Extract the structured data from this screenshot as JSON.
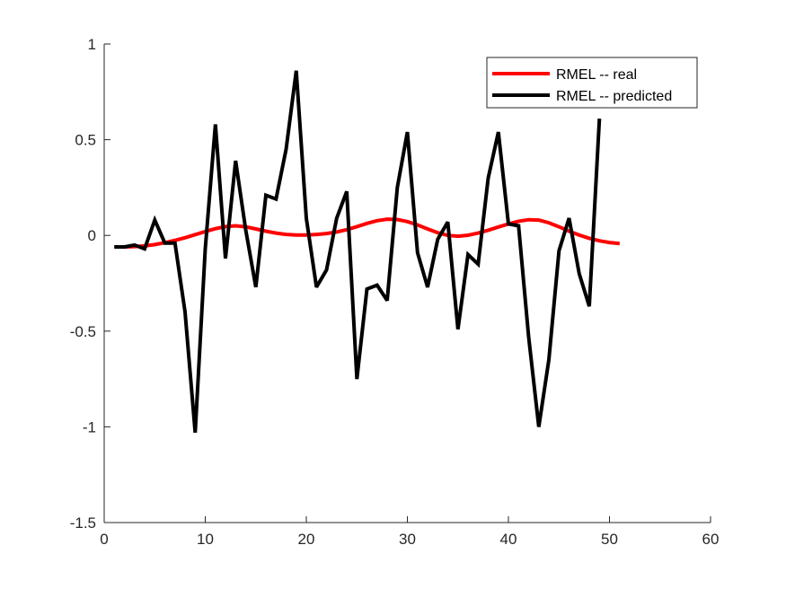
{
  "chart_data": {
    "type": "line",
    "title": "",
    "xlabel": "",
    "ylabel": "",
    "xlim": [
      0,
      60
    ],
    "ylim": [
      -1.5,
      1
    ],
    "xticks": [
      0,
      10,
      20,
      30,
      40,
      50,
      60
    ],
    "yticks": [
      -1.5,
      -1,
      -0.5,
      0,
      0.5,
      1
    ],
    "xtick_labels": [
      "0",
      "10",
      "20",
      "30",
      "40",
      "50",
      "60"
    ],
    "ytick_labels": [
      "-1.5",
      "-1",
      "-0.5",
      "0",
      "0.5",
      "1"
    ],
    "grid": false,
    "legend_position": "top-right",
    "series": [
      {
        "name": "RMEL -- real",
        "color": "#ff0000",
        "x": [
          1,
          2,
          3,
          4,
          5,
          6,
          7,
          8,
          9,
          10,
          11,
          12,
          13,
          14,
          15,
          16,
          17,
          18,
          19,
          20,
          21,
          22,
          23,
          24,
          25,
          26,
          27,
          28,
          29,
          30,
          31,
          32,
          33,
          34,
          35,
          36,
          37,
          38,
          39,
          40,
          41,
          42,
          43,
          44,
          45,
          46,
          47,
          48,
          49,
          50,
          51
        ],
        "values": [
          -0.06,
          -0.06,
          -0.058,
          -0.055,
          -0.048,
          -0.038,
          -0.026,
          -0.012,
          0.004,
          0.02,
          0.035,
          0.046,
          0.05,
          0.045,
          0.034,
          0.022,
          0.012,
          0.005,
          0.002,
          0.002,
          0.005,
          0.01,
          0.018,
          0.03,
          0.046,
          0.063,
          0.077,
          0.085,
          0.083,
          0.072,
          0.055,
          0.034,
          0.014,
          0.0,
          -0.004,
          0.001,
          0.012,
          0.027,
          0.044,
          0.06,
          0.074,
          0.082,
          0.08,
          0.066,
          0.045,
          0.022,
          0.002,
          -0.015,
          -0.028,
          -0.037,
          -0.042
        ]
      },
      {
        "name": "RMEL -- predicted",
        "color": "#000000",
        "x": [
          1,
          2,
          3,
          4,
          5,
          6,
          7,
          8,
          9,
          10,
          11,
          12,
          13,
          14,
          15,
          16,
          17,
          18,
          19,
          20,
          21,
          22,
          23,
          24,
          25,
          26,
          27,
          28,
          29,
          30,
          31,
          32,
          33,
          34,
          35,
          36,
          37,
          38,
          39,
          40,
          41,
          42,
          43,
          44,
          45,
          46,
          47,
          48,
          49
        ],
        "values": [
          -0.06,
          -0.06,
          -0.05,
          -0.07,
          0.08,
          -0.04,
          -0.04,
          -0.4,
          -1.03,
          -0.07,
          0.58,
          -0.12,
          0.39,
          0.03,
          -0.27,
          0.21,
          0.19,
          0.45,
          0.86,
          0.09,
          -0.27,
          -0.18,
          0.09,
          0.23,
          -0.75,
          -0.28,
          -0.26,
          -0.34,
          0.25,
          0.54,
          -0.09,
          -0.27,
          -0.02,
          0.07,
          -0.49,
          -0.1,
          -0.15,
          0.3,
          0.54,
          0.06,
          0.05,
          -0.53,
          -1.0,
          -0.65,
          -0.08,
          0.09,
          -0.2,
          -0.37,
          0.61
        ]
      }
    ]
  }
}
